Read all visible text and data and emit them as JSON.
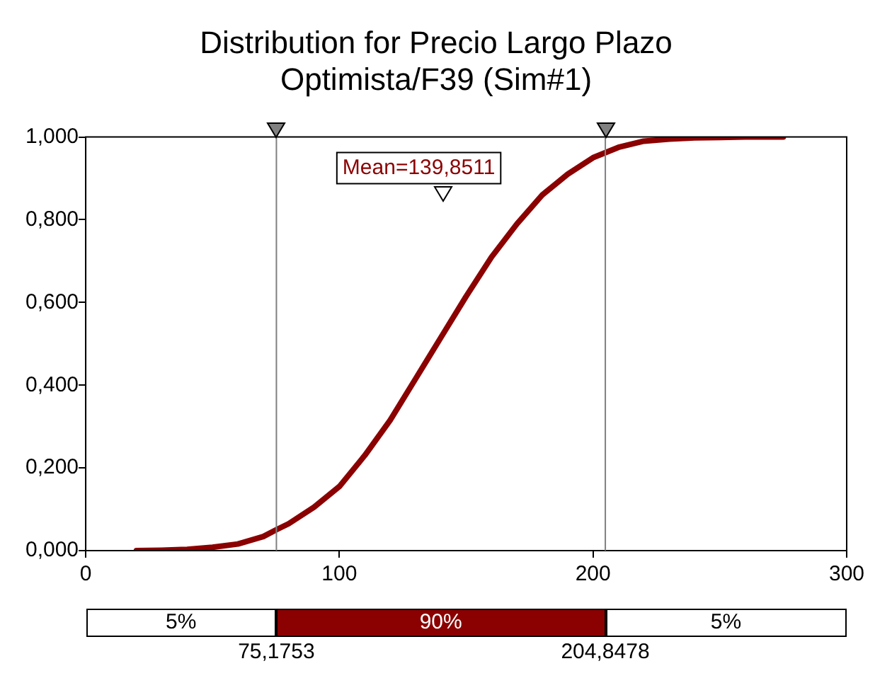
{
  "chart_data": {
    "type": "line",
    "title": "Distribution for Precio Largo Plazo\nOptimista/F39 (Sim#1)",
    "x": [
      20,
      30,
      40,
      50,
      60,
      70,
      75,
      80,
      90,
      100,
      110,
      120,
      130,
      140,
      150,
      160,
      170,
      180,
      190,
      200,
      210,
      220,
      230,
      240,
      250,
      260,
      275
    ],
    "series": [
      {
        "color": "#8b0000",
        "values": [
          0,
          0.001,
          0.003,
          0.008,
          0.016,
          0.034,
          0.05,
          0.065,
          0.105,
          0.155,
          0.23,
          0.315,
          0.415,
          0.515,
          0.615,
          0.71,
          0.79,
          0.86,
          0.91,
          0.95,
          0.975,
          0.99,
          0.995,
          0.998,
          0.999,
          1.0,
          1.0
        ]
      }
    ],
    "xlim": [
      0,
      300
    ],
    "xticks": [
      0,
      100,
      200,
      300
    ],
    "ylim": [
      0,
      1
    ],
    "yticks": [
      {
        "value": 0,
        "label": "0,000"
      },
      {
        "value": 0.2,
        "label": "0,200"
      },
      {
        "value": 0.4,
        "label": "0,400"
      },
      {
        "value": 0.6,
        "label": "0,600"
      },
      {
        "value": 0.8,
        "label": "0,800"
      },
      {
        "value": 1,
        "label": "1,000"
      }
    ],
    "grid": false,
    "legend": false,
    "marker": "none",
    "line_style": "solid",
    "ref_lines": [
      {
        "axis": "x",
        "value": 75.1753,
        "color": "#808080"
      },
      {
        "axis": "x",
        "value": 204.8478,
        "color": "#808080"
      }
    ],
    "annotations": [
      "Mean=139,8511",
      "5%",
      "90%",
      "5%",
      "75,1753",
      "204,8478"
    ]
  }
}
